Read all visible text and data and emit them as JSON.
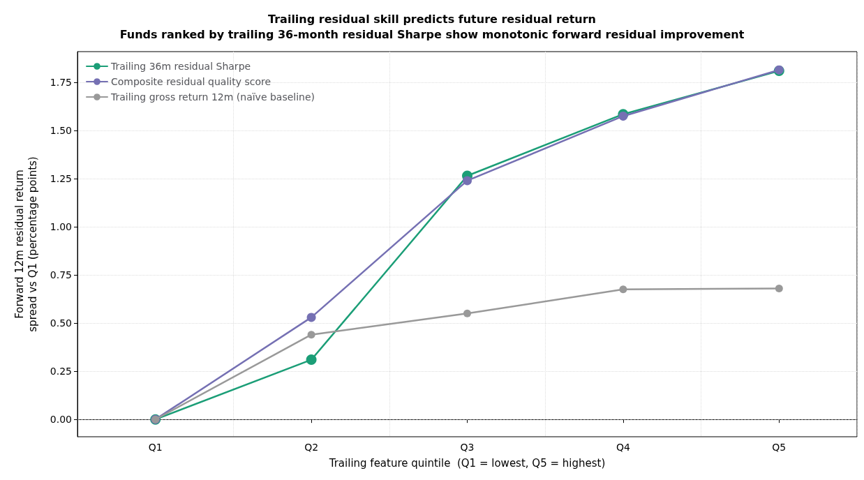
{
  "chart_data": {
    "type": "line",
    "title": "Trailing residual skill predicts future residual return",
    "subtitle": "Funds ranked by trailing 36-month residual Sharpe show monotonic forward residual improvement",
    "xlabel": "Trailing feature quintile  (Q1 = lowest, Q5 = highest)",
    "ylabel": "Forward 12m residual return\nspread vs Q1 (percentage points)",
    "categories": [
      "Q1",
      "Q2",
      "Q3",
      "Q4",
      "Q5"
    ],
    "series": [
      {
        "name": "Trailing 36m residual Sharpe",
        "color": "#1b9e77",
        "values": [
          0,
          0.31,
          1.265,
          1.585,
          1.81
        ]
      },
      {
        "name": "Composite residual quality score",
        "color": "#7570b3",
        "values": [
          0,
          0.53,
          1.24,
          1.575,
          1.815
        ]
      },
      {
        "name": "Trailing gross return 12m (naïve baseline)",
        "color": "#999999",
        "values": [
          0,
          0.44,
          0.55,
          0.675,
          0.68
        ]
      }
    ],
    "ylim": [
      -0.09,
      1.91
    ],
    "yticks": [
      {
        "value": 0,
        "label": "0.00"
      },
      {
        "value": 0.25,
        "label": "0.25"
      },
      {
        "value": 0.5,
        "label": "0.50"
      },
      {
        "value": 0.75,
        "label": "0.75"
      },
      {
        "value": 1,
        "label": "1.00"
      },
      {
        "value": 1.25,
        "label": "1.25"
      },
      {
        "value": 1.5,
        "label": "1.50"
      },
      {
        "value": 1.75,
        "label": "1.75"
      }
    ],
    "ref_lines": [
      {
        "axis": "y",
        "value": 0,
        "color": "#808080",
        "line_style": "dashed"
      }
    ],
    "grid": true,
    "legend": "top left",
    "marker": "circle",
    "line_style": "solid"
  }
}
